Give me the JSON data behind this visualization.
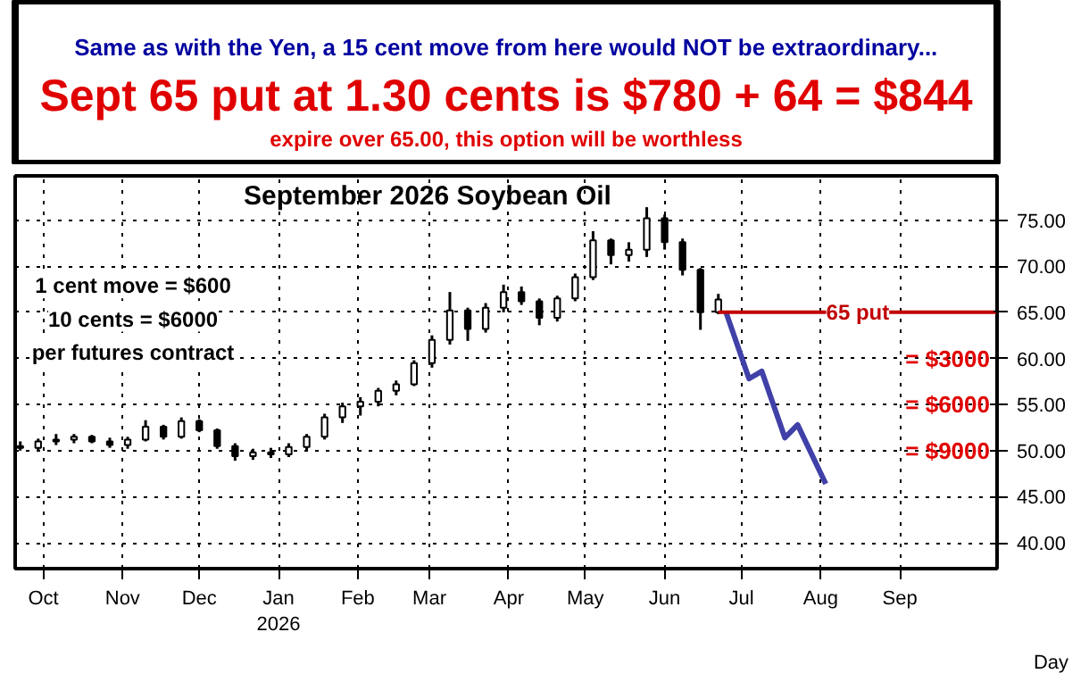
{
  "chart_data": {
    "type": "candlestick",
    "title": "September 2026 Soybean Oil",
    "subtitle": "Same as with the Yen, a 15 cent move from here would NOT be extraordinary...",
    "xlabel": "Day",
    "x": [
      "2025-09-22",
      "2025-09-29",
      "2025-10-06",
      "2025-10-13",
      "2025-10-20",
      "2025-10-27",
      "2025-11-03",
      "2025-11-10",
      "2025-11-17",
      "2025-11-24",
      "2025-12-01",
      "2025-12-08",
      "2025-12-15",
      "2025-12-22",
      "2025-12-29",
      "2026-01-05",
      "2026-01-12",
      "2026-01-19",
      "2026-01-26",
      "2026-02-02",
      "2026-02-09",
      "2026-02-16",
      "2026-02-23",
      "2026-03-02",
      "2026-03-09",
      "2026-03-16",
      "2026-03-23",
      "2026-03-30",
      "2026-04-06",
      "2026-04-13",
      "2026-04-20",
      "2026-04-27",
      "2026-05-04",
      "2026-05-11",
      "2026-05-18",
      "2026-05-25",
      "2026-06-01",
      "2026-06-08",
      "2026-06-15",
      "2026-06-22"
    ],
    "ohlc": [
      [
        50.5,
        51.0,
        50.0,
        50.3
      ],
      [
        50.3,
        51.3,
        50.0,
        51.0
      ],
      [
        51.0,
        51.8,
        50.6,
        51.2
      ],
      [
        51.2,
        51.8,
        50.8,
        51.5
      ],
      [
        51.5,
        51.7,
        50.8,
        51.0
      ],
      [
        51.0,
        51.4,
        50.3,
        50.6
      ],
      [
        50.6,
        51.5,
        50.2,
        51.2
      ],
      [
        51.2,
        53.3,
        51.0,
        52.6
      ],
      [
        52.6,
        52.8,
        51.2,
        51.5
      ],
      [
        51.5,
        53.6,
        51.3,
        53.2
      ],
      [
        53.2,
        53.4,
        52.0,
        52.2
      ],
      [
        52.2,
        52.4,
        50.2,
        50.5
      ],
      [
        50.5,
        50.8,
        48.9,
        49.4
      ],
      [
        49.4,
        50.2,
        49.0,
        49.8
      ],
      [
        49.8,
        50.3,
        49.2,
        49.6
      ],
      [
        49.6,
        50.8,
        49.3,
        50.4
      ],
      [
        50.4,
        51.8,
        50.0,
        51.5
      ],
      [
        51.5,
        54.0,
        51.2,
        53.6
      ],
      [
        53.6,
        55.2,
        53.0,
        54.8
      ],
      [
        54.8,
        55.8,
        53.8,
        55.3
      ],
      [
        55.3,
        56.8,
        54.8,
        56.5
      ],
      [
        56.5,
        57.6,
        56.0,
        57.2
      ],
      [
        57.2,
        59.8,
        57.0,
        59.5
      ],
      [
        59.5,
        62.5,
        59.0,
        62.0
      ],
      [
        62.0,
        67.2,
        61.5,
        65.2
      ],
      [
        65.2,
        65.5,
        61.9,
        63.2
      ],
      [
        63.2,
        66.0,
        62.8,
        65.5
      ],
      [
        65.5,
        68.0,
        65.0,
        67.2
      ],
      [
        67.2,
        67.8,
        65.8,
        66.2
      ],
      [
        66.2,
        66.5,
        63.6,
        64.4
      ],
      [
        64.4,
        66.8,
        64.0,
        66.5
      ],
      [
        66.5,
        69.2,
        66.2,
        68.8
      ],
      [
        68.8,
        73.8,
        68.5,
        72.8
      ],
      [
        72.8,
        73.0,
        70.2,
        71.2
      ],
      [
        71.2,
        72.6,
        70.5,
        71.8
      ],
      [
        71.8,
        76.4,
        71.0,
        75.2
      ],
      [
        75.2,
        75.6,
        71.8,
        72.6
      ],
      [
        72.6,
        73.0,
        69.0,
        69.6
      ],
      [
        69.6,
        69.8,
        63.1,
        65.0
      ],
      [
        65.0,
        67.0,
        64.8,
        66.4
      ]
    ],
    "series": [
      {
        "type": "line",
        "color": "#4040a8",
        "x": [
          "2026-06-25",
          "2026-07-04",
          "2026-07-09",
          "2026-07-18",
          "2026-07-23",
          "2026-08-03"
        ],
        "values": [
          65,
          57.8,
          58.6,
          51.4,
          52.8,
          46.4
        ]
      }
    ],
    "xlim": [
      "2025-09-20",
      "2026-10-09"
    ],
    "xticks": [
      {
        "value": "2025-10-01",
        "label": "Oct"
      },
      {
        "value": "2025-11-01",
        "label": "Nov"
      },
      {
        "value": "2025-12-01",
        "label": "Dec"
      },
      {
        "value": "2026-01-01",
        "label": "Jan\n2026"
      },
      {
        "value": "2026-02-01",
        "label": "Feb"
      },
      {
        "value": "2026-03-01",
        "label": "Mar"
      },
      {
        "value": "2026-04-01",
        "label": "Apr"
      },
      {
        "value": "2026-05-01",
        "label": "May"
      },
      {
        "value": "2026-06-01",
        "label": "Jun"
      },
      {
        "value": "2026-07-01",
        "label": "Jul"
      },
      {
        "value": "2026-08-01",
        "label": "Aug"
      },
      {
        "value": "2026-09-01",
        "label": "Sep"
      }
    ],
    "ylim": [
      37.2,
      79.8
    ],
    "yticks": [
      {
        "value": 40,
        "label": "40.00"
      },
      {
        "value": 45,
        "label": "45.00"
      },
      {
        "value": 50,
        "label": "50.00"
      },
      {
        "value": 55,
        "label": "55.00"
      },
      {
        "value": 60,
        "label": "60.00"
      },
      {
        "value": 65,
        "label": "65.00"
      },
      {
        "value": 70,
        "label": "70.00"
      },
      {
        "value": 75,
        "label": "75.00"
      }
    ],
    "grid": true,
    "ref_lines": [
      {
        "axis": "y",
        "value": 65,
        "label": "65 put",
        "color": "#c00000"
      }
    ],
    "annotations": [
      "Sept 65 put at 1.30 cents is $780 + 64 = $844",
      "expire over 65.00, this option will be worthless",
      "1 cent move = $600",
      "10 cents = $6000",
      "per futures contract",
      "= $3000",
      "= $6000",
      "= $9000"
    ]
  }
}
